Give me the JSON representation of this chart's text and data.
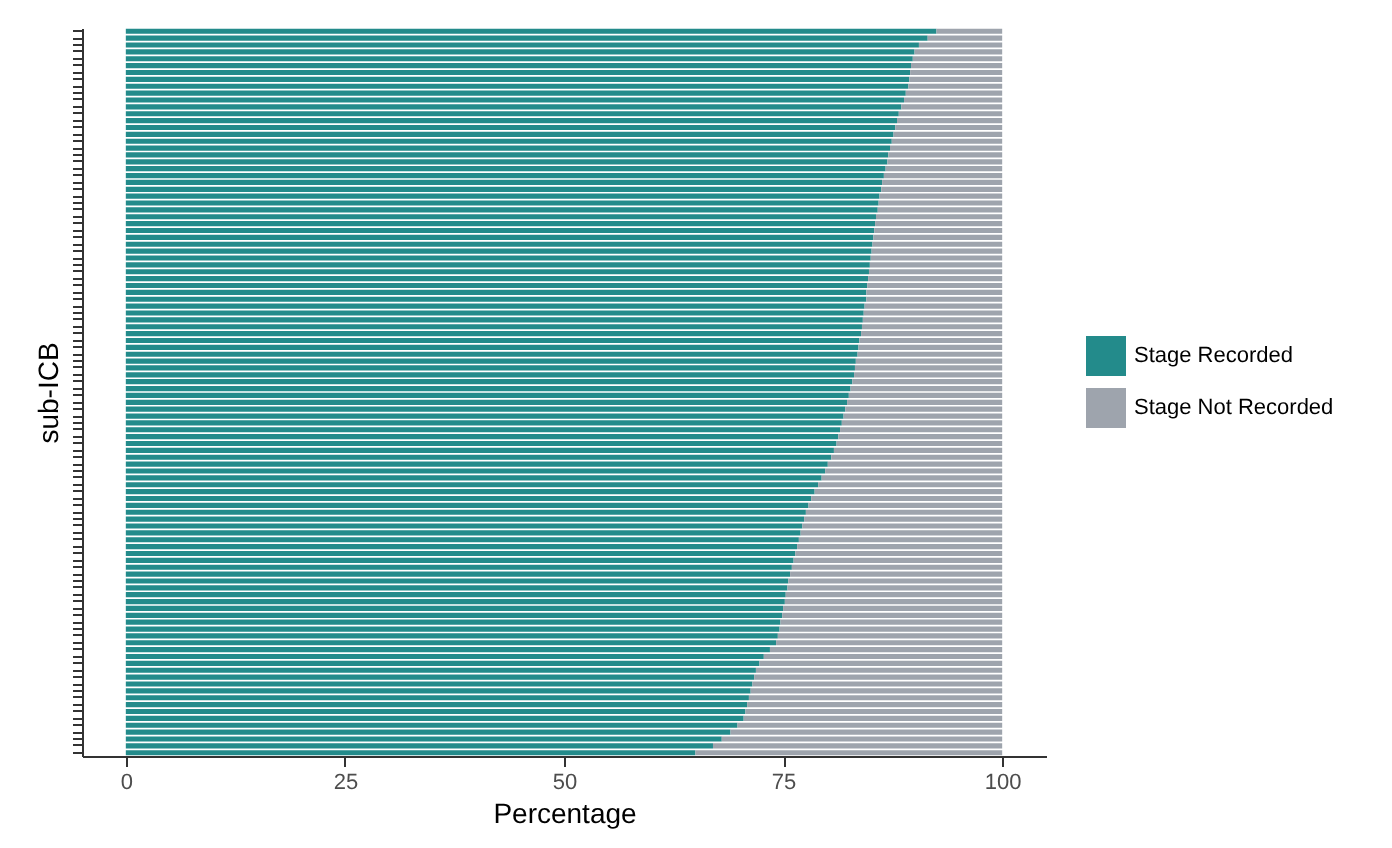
{
  "chart_data": {
    "type": "bar",
    "orientation": "horizontal",
    "stacked": true,
    "xlabel": "Percentage",
    "ylabel": "sub-ICB",
    "legend": "right",
    "tick_labels": "x",
    "xlim": [
      -5,
      105
    ],
    "xticks": [
      0,
      25,
      50,
      75,
      100
    ],
    "categories": [
      null,
      null,
      null,
      null,
      null,
      null,
      null,
      null,
      null,
      null,
      null,
      null,
      null,
      null,
      null,
      null,
      null,
      null,
      null,
      null,
      null,
      null,
      null,
      null,
      null,
      null,
      null,
      null,
      null,
      null,
      null,
      null,
      null,
      null,
      null,
      null,
      null,
      null,
      null,
      null,
      null,
      null,
      null,
      null,
      null,
      null,
      null,
      null,
      null,
      null,
      null,
      null,
      null,
      null,
      null,
      null,
      null,
      null,
      null,
      null,
      null,
      null,
      null,
      null,
      null,
      null,
      null,
      null,
      null,
      null,
      null,
      null,
      null,
      null,
      null,
      null,
      null,
      null,
      null,
      null,
      null,
      null,
      null,
      null,
      null,
      null,
      null,
      null,
      null,
      null,
      null,
      null,
      null,
      null,
      null,
      null,
      null,
      null,
      null,
      null,
      null,
      null,
      null,
      null,
      null,
      null
    ],
    "series": [
      {
        "name": "Stage Recorded",
        "color": "#238b8b",
        "values": [
          92.5,
          91.5,
          90.5,
          90.0,
          89.8,
          89.6,
          89.5,
          89.4,
          89.3,
          89.0,
          88.8,
          88.5,
          88.2,
          88.0,
          87.8,
          87.6,
          87.4,
          87.2,
          87.0,
          86.9,
          86.7,
          86.5,
          86.3,
          86.2,
          86.0,
          85.9,
          85.8,
          85.6,
          85.5,
          85.4,
          85.3,
          85.2,
          85.1,
          85.0,
          84.9,
          84.8,
          84.7,
          84.6,
          84.5,
          84.5,
          84.3,
          84.2,
          84.1,
          84.0,
          83.9,
          83.7,
          83.6,
          83.5,
          83.3,
          83.2,
          83.1,
          82.9,
          82.7,
          82.5,
          82.3,
          82.1,
          81.9,
          81.7,
          81.5,
          81.3,
          81.1,
          80.8,
          80.5,
          80.1,
          79.8,
          79.4,
          79.0,
          78.6,
          78.2,
          77.9,
          77.6,
          77.4,
          77.2,
          77.0,
          76.8,
          76.6,
          76.4,
          76.2,
          76.0,
          75.8,
          75.6,
          75.5,
          75.3,
          75.2,
          75.0,
          74.9,
          74.7,
          74.6,
          74.4,
          74.2,
          73.5,
          72.8,
          72.3,
          71.9,
          71.7,
          71.5,
          71.3,
          71.1,
          70.9,
          70.7,
          70.5,
          69.8,
          69.0,
          68.0,
          67.0,
          65.0
        ]
      },
      {
        "name": "Stage Not Recorded",
        "color": "#9ea4ad",
        "values": [
          7.5,
          8.5,
          9.5,
          10.0,
          10.2,
          10.4,
          10.5,
          10.6,
          10.7,
          11.0,
          11.2,
          11.5,
          11.8,
          12.0,
          12.2,
          12.4,
          12.6,
          12.8,
          13.0,
          13.1,
          13.3,
          13.5,
          13.7,
          13.8,
          14.0,
          14.1,
          14.2,
          14.4,
          14.5,
          14.6,
          14.7,
          14.8,
          14.9,
          15.0,
          15.1,
          15.2,
          15.3,
          15.4,
          15.5,
          15.5,
          15.7,
          15.8,
          15.9,
          16.0,
          16.1,
          16.3,
          16.4,
          16.5,
          16.7,
          16.8,
          16.9,
          17.1,
          17.3,
          17.5,
          17.7,
          17.9,
          18.1,
          18.3,
          18.5,
          18.7,
          18.9,
          19.2,
          19.5,
          19.9,
          20.2,
          20.6,
          21.0,
          21.4,
          21.8,
          22.1,
          22.4,
          22.6,
          22.8,
          23.0,
          23.2,
          23.4,
          23.6,
          23.8,
          24.0,
          24.2,
          24.4,
          24.5,
          24.7,
          24.8,
          25.0,
          25.1,
          25.3,
          25.4,
          25.6,
          25.8,
          26.5,
          27.2,
          27.7,
          28.1,
          28.3,
          28.5,
          28.7,
          28.9,
          29.1,
          29.3,
          29.5,
          30.2,
          31.0,
          32.0,
          33.0,
          35.0
        ]
      }
    ]
  }
}
